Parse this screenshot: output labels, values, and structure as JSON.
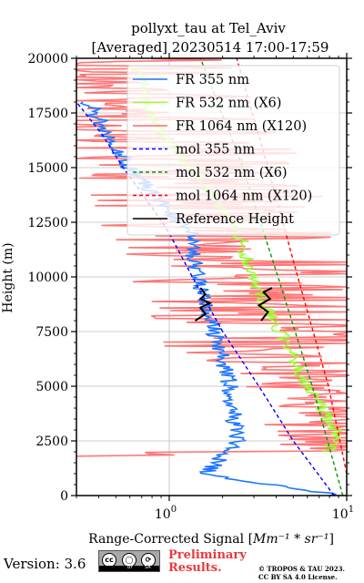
{
  "chart_data": {
    "type": "line",
    "title": "pollyxt_tau at Tel_Aviv",
    "subtitle": "[Averaged] 20230514 17:00-17:59",
    "xlabel": "Range-Corrected Signal [",
    "xlabel_unit": "Mm⁻¹ * sr⁻¹",
    "xlabel_close": "]",
    "ylabel": "Height (m)",
    "xscale": "log",
    "xlim": [
      0.3,
      10
    ],
    "ylim": [
      0,
      20000
    ],
    "yticks": [
      0,
      2500,
      5000,
      7500,
      10000,
      12500,
      15000,
      17500,
      20000
    ],
    "xticks": [
      {
        "value": 1,
        "base": "10",
        "exp": "0"
      },
      {
        "value": 10,
        "base": "10",
        "exp": "1"
      }
    ],
    "grid": true,
    "legend_position": "top-right",
    "series": [
      {
        "name": "FR 355 nm",
        "color": "#1f77ff",
        "style": "solid",
        "x": [
          9.0,
          1.6,
          2.4,
          2.2,
          1.8,
          1.45,
          1.3,
          1.0,
          0.78,
          0.6,
          0.45,
          0.35
        ],
        "y": [
          0,
          1000,
          2500,
          5000,
          7500,
          10000,
          12000,
          13000,
          14000,
          15000,
          16500,
          18000
        ]
      },
      {
        "name": "FR 532 nm (X6)",
        "color": "#99ff33",
        "style": "solid",
        "x": [
          8.0,
          8.8,
          6.0,
          4.6,
          3.8,
          3.0,
          2.3,
          1.5,
          0.9,
          0.75,
          0.65
        ],
        "y": [
          2000,
          3000,
          5000,
          7000,
          8000,
          10000,
          12500,
          14500,
          16500,
          18000,
          19500
        ]
      },
      {
        "name": "FR 1064 nm (X120)",
        "color": "#ff6666",
        "style": "solid",
        "x": [
          9.0,
          7.0,
          5.0,
          4.0,
          3.0,
          2.0,
          1.5,
          1.0,
          0.5
        ],
        "y": [
          2000,
          4000,
          6000,
          8000,
          10000,
          12000,
          14000,
          16000,
          19000
        ]
      },
      {
        "name": "mol 355 nm",
        "color": "#0000ff",
        "style": "dashed",
        "x": [
          8.5,
          5.0,
          3.2,
          2.0,
          1.35,
          1.0,
          0.75,
          0.55,
          0.42,
          0.3
        ],
        "y": [
          0,
          2500,
          5000,
          7500,
          10000,
          12000,
          13500,
          15000,
          16500,
          18000
        ]
      },
      {
        "name": "mol 532 nm (X6)",
        "color": "#009900",
        "style": "dashed",
        "x": [
          9.5,
          6.4,
          4.1,
          2.6,
          1.5,
          0.9
        ],
        "y": [
          0,
          5000,
          10000,
          15000,
          20000,
          20000
        ]
      },
      {
        "name": "mol 1064 nm (X120)",
        "color": "#ff0000",
        "style": "dashed",
        "x": [
          10.0,
          7.9,
          5.3,
          3.6,
          2.4,
          1.65
        ],
        "y": [
          1000,
          5000,
          10000,
          15000,
          20000,
          20000
        ]
      },
      {
        "name": "Reference Height",
        "color": "#000000",
        "style": "solid",
        "x": [
          1.4,
          1.6,
          1.5,
          1.7,
          1.5,
          1.6,
          1.5,
          3.3,
          3.6,
          3.2,
          3.7,
          3.4,
          3.8
        ],
        "y": [
          8000,
          8300,
          8600,
          8800,
          9000,
          9200,
          9500,
          8000,
          8400,
          8700,
          9000,
          9300,
          9500
        ]
      }
    ]
  },
  "footer": {
    "version": "Version: 3.6",
    "cc_labels": [
      "cc",
      "BY",
      "SA"
    ],
    "cc_icons": [
      "creative-commons-icon",
      "attribution-icon",
      "share-alike-icon"
    ],
    "preliminary": [
      "Preliminary",
      "Results."
    ],
    "copyright": [
      "© TROPOS & TAU 2023.",
      "CC BY SA 4.0 License."
    ]
  }
}
